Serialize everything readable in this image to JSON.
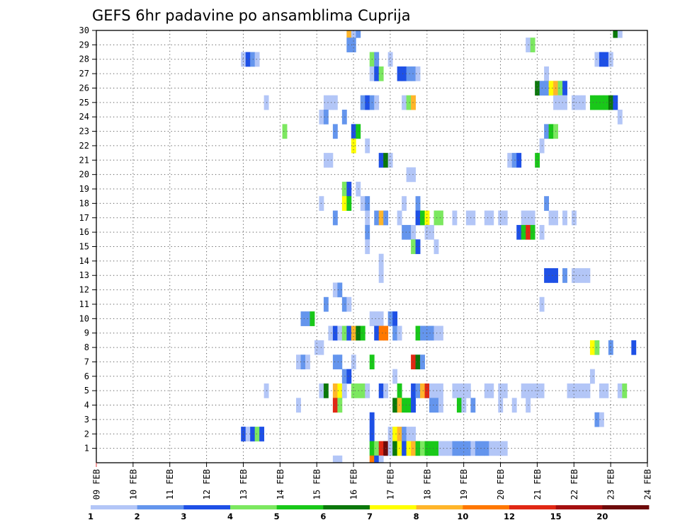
{
  "chart_data": {
    "type": "heatmap",
    "title": "GEFS 6hr padavine po ansamblima Cuprija",
    "xlabel": "",
    "ylabel": "",
    "x_ticks": [
      "09 FEB",
      "10 FEB",
      "11 FEB",
      "12 FEB",
      "13 FEB",
      "14 FEB",
      "15 FEB",
      "16 FEB",
      "17 FEB",
      "18 FEB",
      "19 FEB",
      "20 FEB",
      "21 FEB",
      "22 FEB",
      "23 FEB",
      "24 FEB"
    ],
    "y_ticks": [
      "1",
      "2",
      "3",
      "4",
      "5",
      "6",
      "7",
      "8",
      "9",
      "10",
      "11",
      "12",
      "13",
      "14",
      "15",
      "16",
      "17",
      "18",
      "19",
      "20",
      "21",
      "22",
      "23",
      "24",
      "25",
      "26",
      "27",
      "28",
      "29",
      "30"
    ],
    "xlim": [
      0,
      60
    ],
    "ylim": [
      0,
      30
    ],
    "grid": "dotted",
    "colorbar": {
      "labels": [
        "1",
        "2",
        "3",
        "4",
        "5",
        "6",
        "7",
        "8",
        "10",
        "12",
        "15",
        "20"
      ],
      "colors": [
        "#b3c6f7",
        "#6495ed",
        "#1e50e6",
        "#7ce860",
        "#19c819",
        "#0a780a",
        "#ffff00",
        "#ffb52a",
        "#ff7800",
        "#e12814",
        "#a50f0f",
        "#6e0a0a"
      ]
    },
    "cells": [
      [
        30,
        27.5,
        "#ffb52a"
      ],
      [
        30,
        28,
        "#b3c6f7"
      ],
      [
        30,
        28.5,
        "#6495ed"
      ],
      [
        30,
        56.5,
        "#0a780a"
      ],
      [
        30,
        57,
        "#b3c6f7"
      ],
      [
        29,
        27.5,
        "#6495ed"
      ],
      [
        29,
        28,
        "#6495ed"
      ],
      [
        29,
        47,
        "#b3c6f7"
      ],
      [
        29,
        47.5,
        "#7ce860"
      ],
      [
        28,
        16,
        "#b3c6f7"
      ],
      [
        28,
        16.5,
        "#1e50e6"
      ],
      [
        28,
        17,
        "#6495ed"
      ],
      [
        28,
        17.5,
        "#b3c6f7"
      ],
      [
        28,
        30,
        "#7ce860"
      ],
      [
        28,
        30.5,
        "#6495ed"
      ],
      [
        28,
        32,
        "#b3c6f7"
      ],
      [
        28,
        54.5,
        "#b3c6f7"
      ],
      [
        28,
        55,
        "#1e50e6"
      ],
      [
        28,
        55.5,
        "#1e50e6"
      ],
      [
        28,
        56,
        "#b3c6f7"
      ],
      [
        27,
        30,
        "#b3c6f7"
      ],
      [
        27,
        30.5,
        "#1e50e6"
      ],
      [
        27,
        31,
        "#7ce860"
      ],
      [
        27,
        33,
        "#1e50e6"
      ],
      [
        27,
        33.5,
        "#1e50e6"
      ],
      [
        27,
        34,
        "#6495ed"
      ],
      [
        27,
        34.5,
        "#6495ed"
      ],
      [
        27,
        35,
        "#b3c6f7"
      ],
      [
        27,
        49,
        "#b3c6f7"
      ],
      [
        26,
        48,
        "#0a780a"
      ],
      [
        26,
        48.5,
        "#6495ed"
      ],
      [
        26,
        49,
        "#6495ed"
      ],
      [
        26,
        49.5,
        "#ffff00"
      ],
      [
        26,
        50,
        "#ffb52a"
      ],
      [
        26,
        50.5,
        "#7ce860"
      ],
      [
        26,
        51,
        "#1e50e6"
      ],
      [
        25,
        18.5,
        "#b3c6f7"
      ],
      [
        25,
        25,
        "#b3c6f7"
      ],
      [
        25,
        25.5,
        "#b3c6f7"
      ],
      [
        25,
        26,
        "#b3c6f7"
      ],
      [
        25,
        29,
        "#6495ed"
      ],
      [
        25,
        29.5,
        "#1e50e6"
      ],
      [
        25,
        30,
        "#6495ed"
      ],
      [
        25,
        30.5,
        "#b3c6f7"
      ],
      [
        25,
        33.5,
        "#b3c6f7"
      ],
      [
        25,
        34,
        "#7ce860"
      ],
      [
        25,
        34.5,
        "#ffb52a"
      ],
      [
        25,
        50,
        "#b3c6f7"
      ],
      [
        25,
        50.5,
        "#b3c6f7"
      ],
      [
        25,
        51,
        "#b3c6f7"
      ],
      [
        25,
        52,
        "#b3c6f7"
      ],
      [
        25,
        52.5,
        "#b3c6f7"
      ],
      [
        25,
        53,
        "#b3c6f7"
      ],
      [
        25,
        54,
        "#19c819"
      ],
      [
        25,
        54.5,
        "#19c819"
      ],
      [
        25,
        55,
        "#19c819"
      ],
      [
        25,
        55.5,
        "#19c819"
      ],
      [
        25,
        56,
        "#0a780a"
      ],
      [
        25,
        56.5,
        "#1e50e6"
      ],
      [
        24,
        24.5,
        "#b3c6f7"
      ],
      [
        24,
        25,
        "#6495ed"
      ],
      [
        24,
        27,
        "#6495ed"
      ],
      [
        24,
        57,
        "#b3c6f7"
      ],
      [
        23,
        20.5,
        "#7ce860"
      ],
      [
        23,
        26,
        "#6495ed"
      ],
      [
        23,
        28,
        "#1e50e6"
      ],
      [
        23,
        28.5,
        "#19c819"
      ],
      [
        23,
        49,
        "#6495ed"
      ],
      [
        23,
        49.5,
        "#19c819"
      ],
      [
        23,
        50,
        "#7ce860"
      ],
      [
        22,
        28,
        "#ffff00"
      ],
      [
        22,
        29.5,
        "#b3c6f7"
      ],
      [
        22,
        48.5,
        "#b3c6f7"
      ],
      [
        21,
        25,
        "#b3c6f7"
      ],
      [
        21,
        25.5,
        "#b3c6f7"
      ],
      [
        21,
        31,
        "#1e50e6"
      ],
      [
        21,
        31.5,
        "#0a780a"
      ],
      [
        21,
        32,
        "#b3c6f7"
      ],
      [
        21,
        45,
        "#b3c6f7"
      ],
      [
        21,
        45.5,
        "#6495ed"
      ],
      [
        21,
        46,
        "#1e50e6"
      ],
      [
        21,
        48,
        "#19c819"
      ],
      [
        20,
        34,
        "#b3c6f7"
      ],
      [
        20,
        34.5,
        "#b3c6f7"
      ],
      [
        19,
        27,
        "#7ce860"
      ],
      [
        19,
        27.5,
        "#1e50e6"
      ],
      [
        19,
        28.5,
        "#b3c6f7"
      ],
      [
        18,
        24.5,
        "#b3c6f7"
      ],
      [
        18,
        27,
        "#ffff00"
      ],
      [
        18,
        27.5,
        "#19c819"
      ],
      [
        18,
        29,
        "#b3c6f7"
      ],
      [
        18,
        29.5,
        "#6495ed"
      ],
      [
        18,
        33.5,
        "#b3c6f7"
      ],
      [
        18,
        35,
        "#6495ed"
      ],
      [
        18,
        49,
        "#6495ed"
      ],
      [
        17,
        26,
        "#6495ed"
      ],
      [
        17,
        29.5,
        "#b3c6f7"
      ],
      [
        17,
        30.5,
        "#6495ed"
      ],
      [
        17,
        31,
        "#ffb52a"
      ],
      [
        17,
        31.5,
        "#6495ed"
      ],
      [
        17,
        33,
        "#b3c6f7"
      ],
      [
        17,
        35,
        "#1e50e6"
      ],
      [
        17,
        35.5,
        "#19c819"
      ],
      [
        17,
        36,
        "#ffff00"
      ],
      [
        17,
        37,
        "#7ce860"
      ],
      [
        17,
        37.5,
        "#7ce860"
      ],
      [
        17,
        39,
        "#b3c6f7"
      ],
      [
        17,
        40.5,
        "#b3c6f7"
      ],
      [
        17,
        41,
        "#b3c6f7"
      ],
      [
        17,
        42.5,
        "#b3c6f7"
      ],
      [
        17,
        43,
        "#b3c6f7"
      ],
      [
        17,
        44,
        "#b3c6f7"
      ],
      [
        17,
        44.5,
        "#b3c6f7"
      ],
      [
        17,
        46.5,
        "#b3c6f7"
      ],
      [
        17,
        47,
        "#b3c6f7"
      ],
      [
        17,
        47.5,
        "#b3c6f7"
      ],
      [
        17,
        49.5,
        "#b3c6f7"
      ],
      [
        17,
        50,
        "#b3c6f7"
      ],
      [
        17,
        51,
        "#b3c6f7"
      ],
      [
        17,
        52,
        "#b3c6f7"
      ],
      [
        16,
        29.5,
        "#6495ed"
      ],
      [
        16,
        33.5,
        "#6495ed"
      ],
      [
        16,
        34,
        "#6495ed"
      ],
      [
        16,
        34.5,
        "#b3c6f7"
      ],
      [
        16,
        36,
        "#b3c6f7"
      ],
      [
        16,
        36.5,
        "#b3c6f7"
      ],
      [
        16,
        46,
        "#1e50e6"
      ],
      [
        16,
        46.5,
        "#19c819"
      ],
      [
        16,
        47,
        "#e12814"
      ],
      [
        16,
        47.5,
        "#19c819"
      ],
      [
        16,
        48.5,
        "#b3c6f7"
      ],
      [
        15,
        29.5,
        "#b3c6f7"
      ],
      [
        15,
        34.5,
        "#7ce860"
      ],
      [
        15,
        35,
        "#1e50e6"
      ],
      [
        15,
        37,
        "#b3c6f7"
      ],
      [
        14,
        31,
        "#b3c6f7"
      ],
      [
        13,
        31,
        "#b3c6f7"
      ],
      [
        13,
        49,
        "#1e50e6"
      ],
      [
        13,
        49.5,
        "#1e50e6"
      ],
      [
        13,
        50,
        "#1e50e6"
      ],
      [
        13,
        51,
        "#6495ed"
      ],
      [
        13,
        52,
        "#b3c6f7"
      ],
      [
        13,
        52.5,
        "#b3c6f7"
      ],
      [
        13,
        53,
        "#b3c6f7"
      ],
      [
        13,
        53.5,
        "#b3c6f7"
      ],
      [
        12,
        26,
        "#b3c6f7"
      ],
      [
        12,
        26.5,
        "#6495ed"
      ],
      [
        11,
        25,
        "#6495ed"
      ],
      [
        11,
        27,
        "#6495ed"
      ],
      [
        11,
        27.5,
        "#b3c6f7"
      ],
      [
        11,
        48.5,
        "#b3c6f7"
      ],
      [
        10,
        22.5,
        "#6495ed"
      ],
      [
        10,
        23,
        "#6495ed"
      ],
      [
        10,
        23.5,
        "#19c819"
      ],
      [
        10,
        30,
        "#b3c6f7"
      ],
      [
        10,
        30.5,
        "#b3c6f7"
      ],
      [
        10,
        31,
        "#b3c6f7"
      ],
      [
        10,
        32,
        "#6495ed"
      ],
      [
        10,
        32.5,
        "#1e50e6"
      ],
      [
        9,
        25.5,
        "#b3c6f7"
      ],
      [
        9,
        26,
        "#1e50e6"
      ],
      [
        9,
        26.5,
        "#b3c6f7"
      ],
      [
        9,
        27,
        "#7ce860"
      ],
      [
        9,
        27.5,
        "#1e50e6"
      ],
      [
        9,
        28,
        "#ffb52a"
      ],
      [
        9,
        28.5,
        "#0a780a"
      ],
      [
        9,
        29,
        "#19c819"
      ],
      [
        9,
        30.5,
        "#1e50e6"
      ],
      [
        9,
        31,
        "#ff7800"
      ],
      [
        9,
        31.5,
        "#ff7800"
      ],
      [
        9,
        32.5,
        "#6495ed"
      ],
      [
        9,
        33,
        "#b3c6f7"
      ],
      [
        9,
        35,
        "#19c819"
      ],
      [
        9,
        35.5,
        "#6495ed"
      ],
      [
        9,
        36,
        "#6495ed"
      ],
      [
        9,
        36.5,
        "#6495ed"
      ],
      [
        9,
        37,
        "#b3c6f7"
      ],
      [
        9,
        37.5,
        "#b3c6f7"
      ],
      [
        8,
        24,
        "#b3c6f7"
      ],
      [
        8,
        24.5,
        "#b3c6f7"
      ],
      [
        8,
        54,
        "#ffff00"
      ],
      [
        8,
        54.5,
        "#7ce860"
      ],
      [
        8,
        56,
        "#6495ed"
      ],
      [
        8,
        58.5,
        "#1e50e6"
      ],
      [
        7,
        22,
        "#b3c6f7"
      ],
      [
        7,
        22.5,
        "#6495ed"
      ],
      [
        7,
        23,
        "#b3c6f7"
      ],
      [
        7,
        26,
        "#6495ed"
      ],
      [
        7,
        26.5,
        "#6495ed"
      ],
      [
        7,
        28,
        "#b3c6f7"
      ],
      [
        7,
        30,
        "#19c819"
      ],
      [
        7,
        34.5,
        "#e12814"
      ],
      [
        7,
        35,
        "#0a780a"
      ],
      [
        7,
        35.5,
        "#6495ed"
      ],
      [
        6,
        27,
        "#6495ed"
      ],
      [
        6,
        27.5,
        "#1e50e6"
      ],
      [
        6,
        32.5,
        "#b3c6f7"
      ],
      [
        6,
        54,
        "#b3c6f7"
      ],
      [
        5,
        18.5,
        "#b3c6f7"
      ],
      [
        5,
        24.5,
        "#b3c6f7"
      ],
      [
        5,
        25,
        "#0a780a"
      ],
      [
        5,
        26,
        "#ffb52a"
      ],
      [
        5,
        26.5,
        "#ffff00"
      ],
      [
        5,
        27,
        "#b3c6f7"
      ],
      [
        5,
        28,
        "#7ce860"
      ],
      [
        5,
        28.5,
        "#7ce860"
      ],
      [
        5,
        29,
        "#7ce860"
      ],
      [
        5,
        29.5,
        "#b3c6f7"
      ],
      [
        5,
        31,
        "#1e50e6"
      ],
      [
        5,
        31.5,
        "#b3c6f7"
      ],
      [
        5,
        33,
        "#19c819"
      ],
      [
        5,
        34.5,
        "#1e50e6"
      ],
      [
        5,
        35,
        "#6495ed"
      ],
      [
        5,
        35.5,
        "#ffb52a"
      ],
      [
        5,
        36,
        "#e12814"
      ],
      [
        5,
        36.5,
        "#b3c6f7"
      ],
      [
        5,
        37,
        "#b3c6f7"
      ],
      [
        5,
        37.5,
        "#b3c6f7"
      ],
      [
        5,
        39,
        "#b3c6f7"
      ],
      [
        5,
        39.5,
        "#b3c6f7"
      ],
      [
        5,
        40,
        "#b3c6f7"
      ],
      [
        5,
        40.5,
        "#b3c6f7"
      ],
      [
        5,
        42.5,
        "#b3c6f7"
      ],
      [
        5,
        43,
        "#b3c6f7"
      ],
      [
        5,
        44,
        "#b3c6f7"
      ],
      [
        5,
        44.5,
        "#b3c6f7"
      ],
      [
        5,
        46.5,
        "#b3c6f7"
      ],
      [
        5,
        47,
        "#b3c6f7"
      ],
      [
        5,
        47.5,
        "#b3c6f7"
      ],
      [
        5,
        48,
        "#b3c6f7"
      ],
      [
        5,
        48.5,
        "#b3c6f7"
      ],
      [
        5,
        51.5,
        "#b3c6f7"
      ],
      [
        5,
        52,
        "#b3c6f7"
      ],
      [
        5,
        52.5,
        "#b3c6f7"
      ],
      [
        5,
        53,
        "#b3c6f7"
      ],
      [
        5,
        53.5,
        "#b3c6f7"
      ],
      [
        5,
        55,
        "#b3c6f7"
      ],
      [
        5,
        55.5,
        "#b3c6f7"
      ],
      [
        5,
        57,
        "#b3c6f7"
      ],
      [
        5,
        57.5,
        "#7ce860"
      ],
      [
        4,
        22,
        "#b3c6f7"
      ],
      [
        4,
        26,
        "#e12814"
      ],
      [
        4,
        26.5,
        "#7ce860"
      ],
      [
        4,
        32.5,
        "#0a780a"
      ],
      [
        4,
        33,
        "#ffb52a"
      ],
      [
        4,
        33.5,
        "#19c819"
      ],
      [
        4,
        34,
        "#19c819"
      ],
      [
        4,
        34.5,
        "#1e50e6"
      ],
      [
        4,
        36.5,
        "#6495ed"
      ],
      [
        4,
        37,
        "#6495ed"
      ],
      [
        4,
        37.5,
        "#b3c6f7"
      ],
      [
        4,
        39.5,
        "#19c819"
      ],
      [
        4,
        40,
        "#b3c6f7"
      ],
      [
        4,
        41,
        "#6495ed"
      ],
      [
        4,
        44,
        "#b3c6f7"
      ],
      [
        4,
        45.5,
        "#b3c6f7"
      ],
      [
        4,
        47,
        "#b3c6f7"
      ],
      [
        3,
        30,
        "#1e50e6"
      ],
      [
        3,
        54.5,
        "#6495ed"
      ],
      [
        3,
        55,
        "#b3c6f7"
      ],
      [
        2,
        16,
        "#1e50e6"
      ],
      [
        2,
        16.5,
        "#b3c6f7"
      ],
      [
        2,
        17,
        "#1e50e6"
      ],
      [
        2,
        17.5,
        "#7ce860"
      ],
      [
        2,
        18,
        "#1e50e6"
      ],
      [
        2,
        30,
        "#1e50e6"
      ],
      [
        2,
        32,
        "#b3c6f7"
      ],
      [
        2,
        32.5,
        "#ffff00"
      ],
      [
        2,
        33,
        "#ffb52a"
      ],
      [
        2,
        33.5,
        "#6495ed"
      ],
      [
        2,
        34,
        "#b3c6f7"
      ],
      [
        2,
        34.5,
        "#b3c6f7"
      ],
      [
        1,
        30,
        "#19c819"
      ],
      [
        1,
        30.5,
        "#7ce860"
      ],
      [
        1,
        31,
        "#e12814"
      ],
      [
        1,
        31.5,
        "#6e0a0a"
      ],
      [
        1,
        32,
        "#b3c6f7"
      ],
      [
        1,
        32.5,
        "#0a780a"
      ],
      [
        1,
        33,
        "#ffff00"
      ],
      [
        1,
        33.5,
        "#1e50e6"
      ],
      [
        1,
        34,
        "#ffff00"
      ],
      [
        1,
        34.5,
        "#ffb52a"
      ],
      [
        1,
        35,
        "#19c819"
      ],
      [
        1,
        35.5,
        "#7ce860"
      ],
      [
        1,
        36,
        "#19c819"
      ],
      [
        1,
        36.5,
        "#19c819"
      ],
      [
        1,
        37,
        "#19c819"
      ],
      [
        1,
        37.5,
        "#b3c6f7"
      ],
      [
        1,
        38,
        "#b3c6f7"
      ],
      [
        1,
        38.5,
        "#b3c6f7"
      ],
      [
        1,
        39,
        "#6495ed"
      ],
      [
        1,
        39.5,
        "#6495ed"
      ],
      [
        1,
        40,
        "#6495ed"
      ],
      [
        1,
        40.5,
        "#6495ed"
      ],
      [
        1,
        41,
        "#b3c6f7"
      ],
      [
        1,
        41.5,
        "#6495ed"
      ],
      [
        1,
        42,
        "#6495ed"
      ],
      [
        1,
        42.5,
        "#6495ed"
      ],
      [
        1,
        43,
        "#b3c6f7"
      ],
      [
        1,
        43.5,
        "#b3c6f7"
      ],
      [
        1,
        44,
        "#b3c6f7"
      ],
      [
        1,
        44.5,
        "#b3c6f7"
      ],
      [
        0,
        26,
        "#b3c6f7"
      ],
      [
        0,
        26.5,
        "#b3c6f7"
      ],
      [
        0,
        30,
        "#ff7800"
      ],
      [
        0,
        30.5,
        "#1e50e6"
      ],
      [
        0,
        31,
        "#b3c6f7"
      ]
    ]
  }
}
